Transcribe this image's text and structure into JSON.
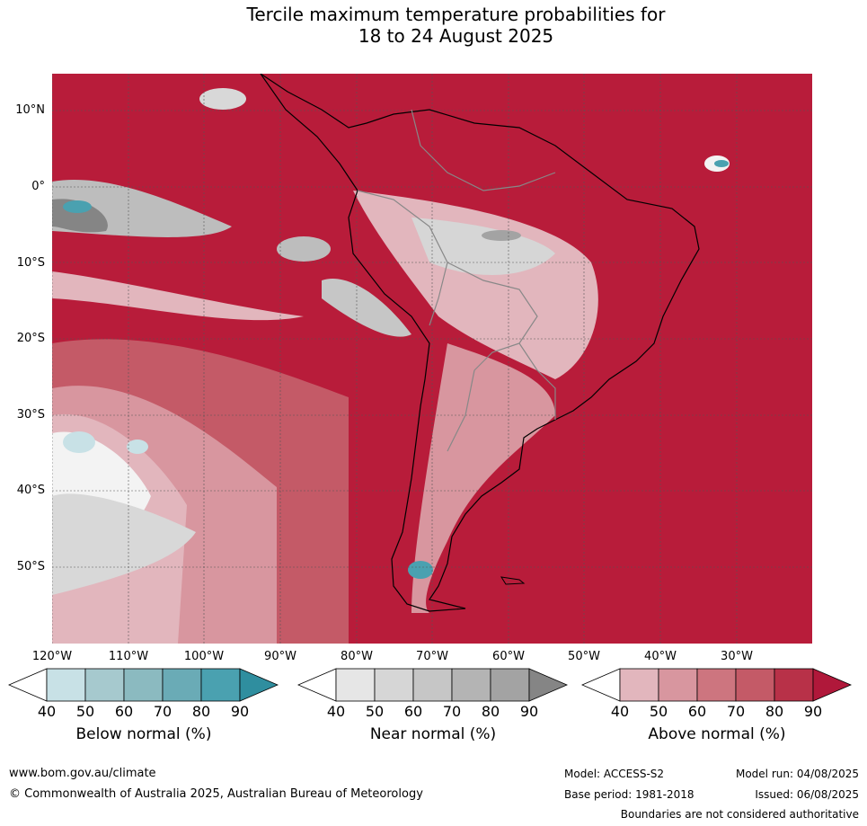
{
  "title": {
    "line1": "Tercile maximum temperature probabilities for",
    "line2": "18 to 24 August 2025"
  },
  "map": {
    "latitude_labels": [
      "10°N",
      "0°",
      "10°S",
      "20°S",
      "30°S",
      "40°S",
      "50°S"
    ],
    "longitude_labels": [
      "120°W",
      "110°W",
      "100°W",
      "90°W",
      "80°W",
      "70°W",
      "60°W",
      "50°W",
      "40°W",
      "30°W"
    ],
    "colors": {
      "above_dominant": "#b81c3a",
      "ocean_gridline": "#555555",
      "coastline": "#000000",
      "borders": "#888888"
    }
  },
  "colorbars": [
    {
      "name": "below",
      "label": "Below normal (%)",
      "ticks": [
        "40",
        "50",
        "60",
        "70",
        "80",
        "90"
      ],
      "colors": [
        "#ffffff",
        "#c8e1e6",
        "#a6c9ce",
        "#8bbac0",
        "#6aabb6",
        "#4aa1b0",
        "#2f8e9f"
      ]
    },
    {
      "name": "near",
      "label": "Near normal (%)",
      "ticks": [
        "40",
        "50",
        "60",
        "70",
        "80",
        "90"
      ],
      "colors": [
        "#ffffff",
        "#e6e6e6",
        "#d6d6d6",
        "#c6c6c6",
        "#b4b4b4",
        "#a3a3a3",
        "#858585"
      ]
    },
    {
      "name": "above",
      "label": "Above normal (%)",
      "ticks": [
        "40",
        "50",
        "60",
        "70",
        "80",
        "90"
      ],
      "colors": [
        "#ffffff",
        "#e2b6bd",
        "#d8969f",
        "#cd757f",
        "#c45a67",
        "#b83148",
        "#b0183a"
      ]
    }
  ],
  "footer": {
    "website": "www.bom.gov.au/climate",
    "copyright": "© Commonwealth of Australia 2025, Australian Bureau of Meteorology",
    "model": "Model: ACCESS-S2",
    "base_period": "Base period: 1981-2018",
    "model_run": "Model run: 04/08/2025",
    "issued": "Issued: 06/08/2025",
    "disclaimer": "Boundaries are not considered authoritative"
  }
}
